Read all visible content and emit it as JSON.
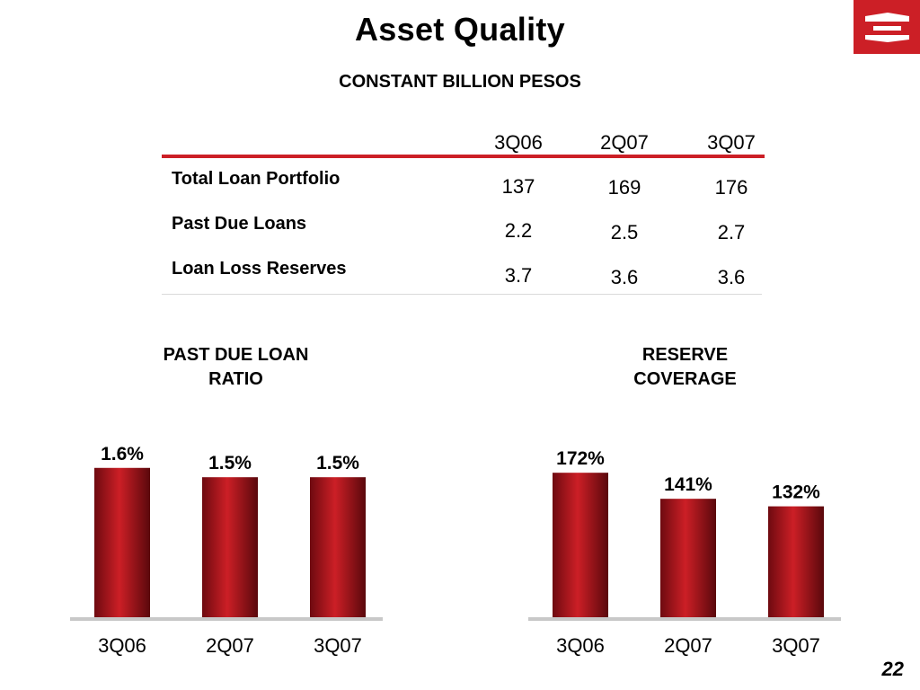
{
  "title": "Asset Quality",
  "subtitle": "CONSTANT BILLION PESOS",
  "table": {
    "columns": [
      "3Q06",
      "2Q07",
      "3Q07"
    ],
    "rows": [
      {
        "label": "Total Loan Portfolio",
        "values": [
          "137",
          "169",
          "176"
        ]
      },
      {
        "label": "Past Due Loans",
        "values": [
          "2.2",
          "2.5",
          "2.7"
        ]
      },
      {
        "label": "Loan Loss Reserves",
        "values": [
          "3.7",
          "3.6",
          "3.6"
        ]
      }
    ]
  },
  "chart_data": [
    {
      "type": "bar",
      "title": "PAST DUE LOAN\nRATIO",
      "categories": [
        "3Q06",
        "2Q07",
        "3Q07"
      ],
      "values": [
        1.6,
        1.5,
        1.5
      ],
      "labels": [
        "1.6%",
        "1.5%",
        "1.5%"
      ],
      "ylim": [
        0,
        1.8
      ],
      "bar_color": "#cc1f26"
    },
    {
      "type": "bar",
      "title": "RESERVE\nCOVERAGE",
      "categories": [
        "3Q06",
        "2Q07",
        "3Q07"
      ],
      "values": [
        172,
        141,
        132
      ],
      "labels": [
        "172%",
        "141%",
        "132%"
      ],
      "ylim": [
        0,
        200
      ],
      "bar_color": "#cc1f26"
    }
  ],
  "colors": {
    "accent": "#cc1f26",
    "axis": "#c8c8c8"
  },
  "logo_icon": "banorte-logo-icon",
  "page_number": "22"
}
